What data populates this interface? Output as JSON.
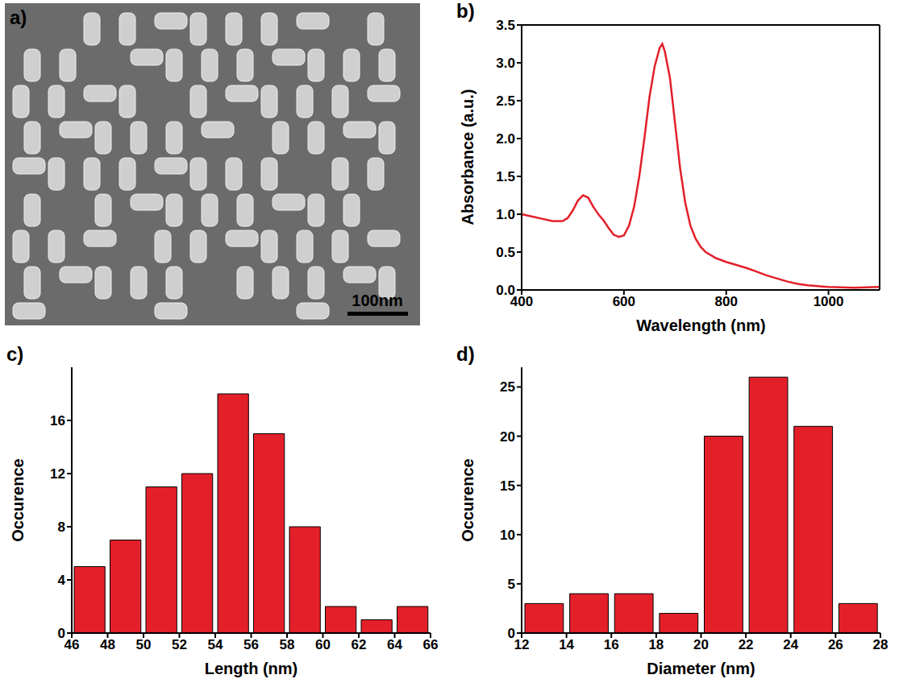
{
  "chart_data": [
    {
      "type": "image",
      "label": "a)",
      "scale_bar": "100nm"
    },
    {
      "type": "line",
      "label": "b)",
      "x_label": "Wavelength (nm)",
      "y_label": "Absorbance (a.u.)",
      "color": "#e3202a",
      "x": [
        400,
        420,
        440,
        460,
        480,
        490,
        500,
        510,
        520,
        530,
        540,
        550,
        560,
        570,
        580,
        590,
        600,
        610,
        620,
        630,
        640,
        650,
        660,
        670,
        675,
        680,
        690,
        700,
        710,
        720,
        730,
        740,
        750,
        760,
        780,
        800,
        820,
        840,
        860,
        880,
        900,
        920,
        940,
        960,
        980,
        1000,
        1050,
        1100
      ],
      "values": [
        1.0,
        0.97,
        0.94,
        0.91,
        0.91,
        0.95,
        1.05,
        1.18,
        1.25,
        1.22,
        1.1,
        1.0,
        0.92,
        0.82,
        0.73,
        0.7,
        0.72,
        0.85,
        1.1,
        1.5,
        2.0,
        2.55,
        2.95,
        3.2,
        3.25,
        3.15,
        2.8,
        2.2,
        1.6,
        1.15,
        0.85,
        0.68,
        0.57,
        0.5,
        0.42,
        0.37,
        0.33,
        0.29,
        0.24,
        0.19,
        0.15,
        0.11,
        0.08,
        0.06,
        0.05,
        0.04,
        0.03,
        0.04
      ],
      "xlim": [
        400,
        1100
      ],
      "xticks": [
        400,
        600,
        800,
        1000
      ],
      "ylim": [
        0,
        3.5
      ],
      "yticks": [
        {
          "value": 0,
          "label": "0.0"
        },
        0.5,
        {
          "value": 1,
          "label": "1.0"
        },
        1.5,
        {
          "value": 2,
          "label": "2.0"
        },
        2.5,
        {
          "value": 3,
          "label": "3.0"
        },
        3.5
      ]
    },
    {
      "type": "histogram",
      "label": "c)",
      "x_label": "Length (nm)",
      "y_label": "Occurence",
      "color": "#e3202a",
      "bins": [
        46,
        48,
        50,
        52,
        54,
        56,
        58,
        60,
        62,
        64,
        66
      ],
      "values": [
        5,
        7,
        11,
        12,
        18,
        15,
        8,
        2,
        1,
        2
      ],
      "xlim": [
        46,
        66
      ],
      "xticks": [
        46,
        48,
        50,
        52,
        54,
        56,
        58,
        60,
        62,
        64,
        66
      ],
      "ylim": [
        0,
        20
      ],
      "yticks": [
        0,
        4,
        8,
        12,
        16
      ]
    },
    {
      "type": "histogram",
      "label": "d)",
      "x_label": "Diameter (nm)",
      "y_label": "Occurence",
      "color": "#e3202a",
      "bins": [
        12,
        14,
        16,
        18,
        20,
        22,
        24,
        26,
        28
      ],
      "values": [
        3,
        4,
        4,
        2,
        20,
        26,
        21,
        3
      ],
      "xlim": [
        12,
        28
      ],
      "xticks": [
        12,
        14,
        16,
        18,
        20,
        22,
        24,
        26,
        28
      ],
      "ylim": [
        0,
        27
      ],
      "yticks": [
        0,
        5,
        10,
        15,
        20,
        25
      ]
    }
  ]
}
